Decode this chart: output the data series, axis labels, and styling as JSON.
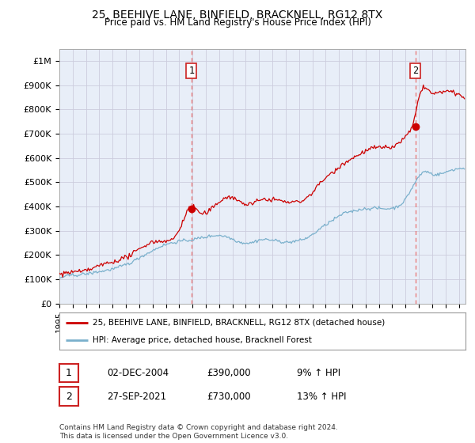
{
  "title": "25, BEEHIVE LANE, BINFIELD, BRACKNELL, RG12 8TX",
  "subtitle": "Price paid vs. HM Land Registry's House Price Index (HPI)",
  "ylabel_ticks": [
    "£0",
    "£100K",
    "£200K",
    "£300K",
    "£400K",
    "£500K",
    "£600K",
    "£700K",
    "£800K",
    "£900K",
    "£1M"
  ],
  "ytick_values": [
    0,
    100000,
    200000,
    300000,
    400000,
    500000,
    600000,
    700000,
    800000,
    900000,
    1000000
  ],
  "ylim": [
    0,
    1050000
  ],
  "xlim_start": 1995.0,
  "xlim_end": 2025.5,
  "sale1_x": 2004.92,
  "sale1_y": 390000,
  "sale2_x": 2021.75,
  "sale2_y": 730000,
  "vline1_x": 2004.92,
  "vline2_x": 2021.75,
  "legend_line1": "25, BEEHIVE LANE, BINFIELD, BRACKNELL, RG12 8TX (detached house)",
  "legend_line2": "HPI: Average price, detached house, Bracknell Forest",
  "table_rows": [
    {
      "label": "1",
      "date": "02-DEC-2004",
      "price": "£390,000",
      "hpi": "9% ↑ HPI"
    },
    {
      "label": "2",
      "date": "27-SEP-2021",
      "price": "£730,000",
      "hpi": "13% ↑ HPI"
    }
  ],
  "footnote": "Contains HM Land Registry data © Crown copyright and database right 2024.\nThis data is licensed under the Open Government Licence v3.0.",
  "red_color": "#cc0000",
  "blue_color": "#7ab0cc",
  "vline_color": "#e87070",
  "grid_color": "#ccccdd",
  "chart_bg": "#e8eef8"
}
